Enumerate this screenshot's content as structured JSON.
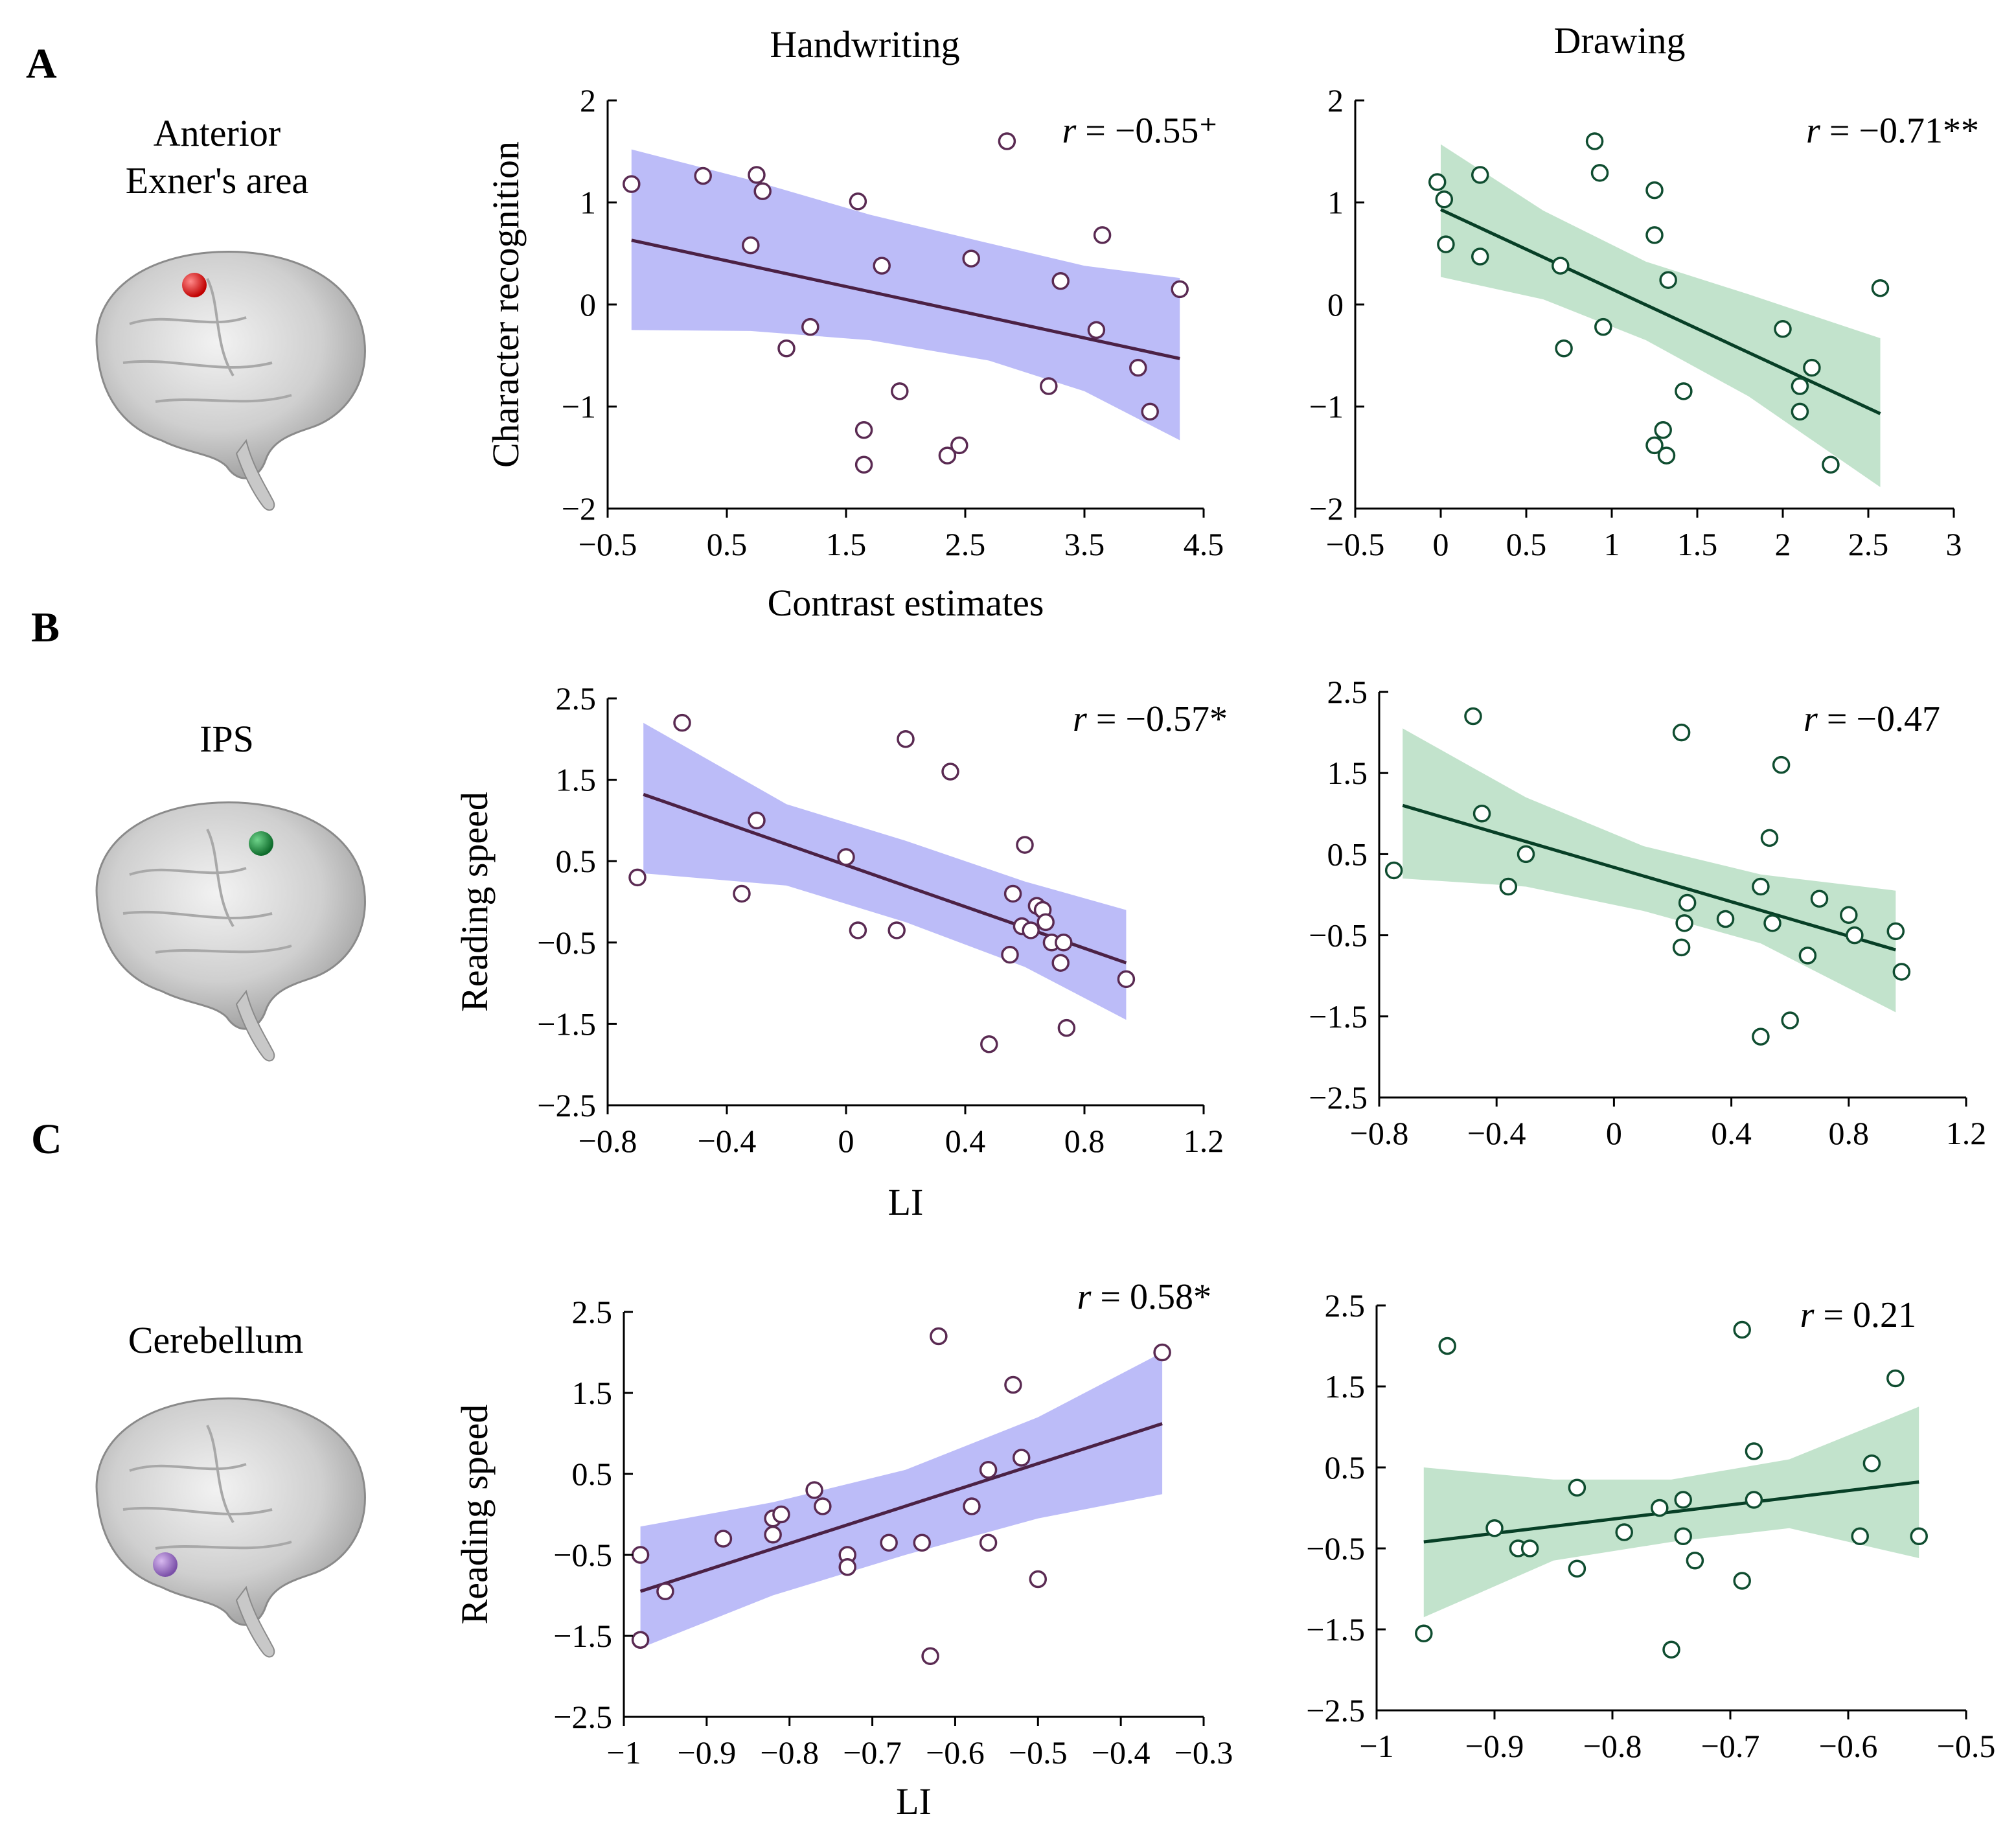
{
  "figure": {
    "columns": [
      "Handwriting",
      "Drawing"
    ],
    "panels": [
      {
        "letter": "A",
        "region": [
          "Anterior",
          "Exner's area"
        ],
        "region_color": "#e02020"
      },
      {
        "letter": "B",
        "region": [
          "IPS"
        ],
        "region_color": "#1f8a3a"
      },
      {
        "letter": "C",
        "region": [
          "Cerebellum"
        ],
        "region_color": "#9a6cc0"
      }
    ]
  },
  "colors": {
    "handwriting_band": "#b8b8f8",
    "handwriting_line": "#4b2145",
    "handwriting_point": "#5a2a52",
    "drawing_band": "#bfe1c9",
    "drawing_line": "#073f26",
    "drawing_point": "#0f4d30"
  },
  "chart_data": [
    {
      "id": "A-handwriting",
      "type": "scatter",
      "series_name": "Handwriting",
      "xlabel": "Contrast estimates",
      "ylabel": "Character recognition",
      "xlim": [
        -0.5,
        4.5
      ],
      "ylim": [
        -2,
        2
      ],
      "xticks": [
        -0.5,
        0.5,
        1.5,
        2.5,
        3.5,
        4.5
      ],
      "xtick_labels": [
        "−0.5",
        "0.5",
        "1.5",
        "2.5",
        "3.5",
        "4.5"
      ],
      "yticks": [
        -2,
        -1,
        0,
        1,
        2
      ],
      "ytick_labels": [
        "−2",
        "−1",
        "0",
        "1",
        "2"
      ],
      "annotation": "r = −0.55⁺",
      "fit_line": {
        "x": [
          -0.3,
          4.3
        ],
        "y": [
          0.63,
          -0.53
        ]
      },
      "ci_band": {
        "x": [
          -0.3,
          0.7,
          1.7,
          2.7,
          3.5,
          4.3
        ],
        "upper": [
          1.52,
          1.22,
          0.88,
          0.6,
          0.38,
          0.26
        ],
        "lower": [
          -0.25,
          -0.26,
          -0.35,
          -0.55,
          -0.85,
          -1.33
        ]
      },
      "points": [
        {
          "x": -0.3,
          "y": 1.18
        },
        {
          "x": 0.3,
          "y": 1.26
        },
        {
          "x": 0.7,
          "y": 0.58
        },
        {
          "x": 0.75,
          "y": 1.27
        },
        {
          "x": 0.8,
          "y": 1.11
        },
        {
          "x": 1.0,
          "y": -0.43
        },
        {
          "x": 1.2,
          "y": -0.22
        },
        {
          "x": 1.6,
          "y": 1.01
        },
        {
          "x": 1.65,
          "y": -1.23
        },
        {
          "x": 1.65,
          "y": -1.57
        },
        {
          "x": 1.8,
          "y": 0.38
        },
        {
          "x": 1.95,
          "y": -0.85
        },
        {
          "x": 2.35,
          "y": -1.48
        },
        {
          "x": 2.45,
          "y": -1.38
        },
        {
          "x": 2.55,
          "y": 0.45
        },
        {
          "x": 2.85,
          "y": 1.6
        },
        {
          "x": 3.2,
          "y": -0.8
        },
        {
          "x": 3.3,
          "y": 0.23
        },
        {
          "x": 3.6,
          "y": -0.25
        },
        {
          "x": 3.65,
          "y": 0.68
        },
        {
          "x": 3.95,
          "y": -0.62
        },
        {
          "x": 4.05,
          "y": -1.05
        },
        {
          "x": 4.3,
          "y": 0.15
        }
      ]
    },
    {
      "id": "A-drawing",
      "type": "scatter",
      "series_name": "Drawing",
      "xlabel": "",
      "ylabel": "",
      "xlim": [
        -0.5,
        3
      ],
      "ylim": [
        -2,
        2
      ],
      "xticks": [
        -0.5,
        0,
        0.5,
        1,
        1.5,
        2,
        2.5,
        3
      ],
      "xtick_labels": [
        "−0.5",
        "0",
        "0.5",
        "1",
        "1.5",
        "2",
        "2.5",
        "3"
      ],
      "yticks": [
        -2,
        -1,
        0,
        1,
        2
      ],
      "ytick_labels": [
        "−2",
        "−1",
        "0",
        "1",
        "2"
      ],
      "annotation": "r = −0.71**",
      "fit_line": {
        "x": [
          0,
          2.57
        ],
        "y": [
          0.93,
          -1.07
        ]
      },
      "ci_band": {
        "x": [
          0,
          0.6,
          1.2,
          1.8,
          2.57
        ],
        "upper": [
          1.57,
          0.92,
          0.42,
          0.1,
          -0.33
        ],
        "lower": [
          0.27,
          0.05,
          -0.35,
          -0.9,
          -1.79
        ]
      },
      "points": [
        {
          "x": -0.02,
          "y": 1.2
        },
        {
          "x": 0.02,
          "y": 1.03
        },
        {
          "x": 0.03,
          "y": 0.59
        },
        {
          "x": 0.23,
          "y": 1.27
        },
        {
          "x": 0.23,
          "y": 0.47
        },
        {
          "x": 0.7,
          "y": 0.38
        },
        {
          "x": 0.72,
          "y": -0.43
        },
        {
          "x": 0.9,
          "y": 1.6
        },
        {
          "x": 0.93,
          "y": 1.29
        },
        {
          "x": 0.95,
          "y": -0.22
        },
        {
          "x": 1.25,
          "y": 1.12
        },
        {
          "x": 1.25,
          "y": 0.68
        },
        {
          "x": 1.25,
          "y": -1.38
        },
        {
          "x": 1.3,
          "y": -1.23
        },
        {
          "x": 1.32,
          "y": -1.48
        },
        {
          "x": 1.33,
          "y": 0.24
        },
        {
          "x": 1.42,
          "y": -0.85
        },
        {
          "x": 2.0,
          "y": -0.24
        },
        {
          "x": 2.1,
          "y": -0.8
        },
        {
          "x": 2.1,
          "y": -1.05
        },
        {
          "x": 2.17,
          "y": -0.62
        },
        {
          "x": 2.28,
          "y": -1.57
        },
        {
          "x": 2.57,
          "y": 0.16
        }
      ]
    },
    {
      "id": "B-handwriting",
      "type": "scatter",
      "series_name": "Handwriting",
      "xlabel": "LI",
      "ylabel": "Reading speed",
      "xlim": [
        -0.8,
        1.2
      ],
      "ylim": [
        -2.5,
        2.5
      ],
      "xticks": [
        -0.8,
        -0.4,
        0,
        0.4,
        0.8,
        1.2
      ],
      "xtick_labels": [
        "−0.8",
        "−0.4",
        "0",
        "0.4",
        "0.8",
        "1.2"
      ],
      "yticks": [
        -2.5,
        -1.5,
        -0.5,
        0.5,
        1.5,
        2.5
      ],
      "ytick_labels": [
        "−2.5",
        "−1.5",
        "−0.5",
        "0.5",
        "1.5",
        "2.5"
      ],
      "annotation": "r = −0.57*",
      "fit_line": {
        "x": [
          -0.68,
          0.94
        ],
        "y": [
          1.32,
          -0.75
        ]
      },
      "ci_band": {
        "x": [
          -0.68,
          -0.2,
          0.2,
          0.6,
          0.94
        ],
        "upper": [
          2.2,
          1.2,
          0.75,
          0.25,
          -0.1
        ],
        "lower": [
          0.35,
          0.2,
          -0.25,
          -0.8,
          -1.45
        ]
      },
      "points": [
        {
          "x": -0.7,
          "y": 0.3
        },
        {
          "x": -0.55,
          "y": 2.2
        },
        {
          "x": -0.35,
          "y": 0.1
        },
        {
          "x": -0.3,
          "y": 1.0
        },
        {
          "x": 0.0,
          "y": 0.55
        },
        {
          "x": 0.04,
          "y": -0.35
        },
        {
          "x": 0.17,
          "y": -0.35
        },
        {
          "x": 0.2,
          "y": 2.0
        },
        {
          "x": 0.35,
          "y": 1.6
        },
        {
          "x": 0.48,
          "y": -1.75
        },
        {
          "x": 0.55,
          "y": -0.65
        },
        {
          "x": 0.56,
          "y": 0.1
        },
        {
          "x": 0.59,
          "y": -0.3
        },
        {
          "x": 0.6,
          "y": 0.7
        },
        {
          "x": 0.62,
          "y": -0.35
        },
        {
          "x": 0.64,
          "y": -0.05
        },
        {
          "x": 0.66,
          "y": -0.1
        },
        {
          "x": 0.67,
          "y": -0.25
        },
        {
          "x": 0.69,
          "y": -0.5
        },
        {
          "x": 0.72,
          "y": -0.75
        },
        {
          "x": 0.73,
          "y": -0.5
        },
        {
          "x": 0.74,
          "y": -1.55
        },
        {
          "x": 0.94,
          "y": -0.95
        }
      ]
    },
    {
      "id": "B-drawing",
      "type": "scatter",
      "series_name": "Drawing",
      "xlabel": "",
      "ylabel": "",
      "xlim": [
        -0.8,
        1.2
      ],
      "ylim": [
        -2.5,
        2.5
      ],
      "xticks": [
        -0.8,
        -0.4,
        0,
        0.4,
        0.8,
        1.2
      ],
      "xtick_labels": [
        "−0.8",
        "−0.4",
        "0",
        "0.4",
        "0.8",
        "1.2"
      ],
      "yticks": [
        -2.5,
        -1.5,
        -0.5,
        0.5,
        1.5,
        2.5
      ],
      "ytick_labels": [
        "−2.5",
        "−1.5",
        "−0.5",
        "0.5",
        "1.5",
        "2.5"
      ],
      "annotation": "r = −0.47",
      "fit_line": {
        "x": [
          -0.72,
          0.96
        ],
        "y": [
          1.1,
          -0.68
        ]
      },
      "ci_band": {
        "x": [
          -0.72,
          -0.3,
          0.1,
          0.5,
          0.96
        ],
        "upper": [
          2.05,
          1.2,
          0.6,
          0.25,
          0.05
        ],
        "lower": [
          0.2,
          0.1,
          -0.2,
          -0.6,
          -1.45
        ]
      },
      "points": [
        {
          "x": -0.75,
          "y": 0.3
        },
        {
          "x": -0.48,
          "y": 2.2
        },
        {
          "x": -0.45,
          "y": 1.0
        },
        {
          "x": -0.36,
          "y": 0.1
        },
        {
          "x": -0.3,
          "y": 0.5
        },
        {
          "x": 0.23,
          "y": 2.0
        },
        {
          "x": 0.23,
          "y": -0.65
        },
        {
          "x": 0.24,
          "y": -0.35
        },
        {
          "x": 0.25,
          "y": -0.1
        },
        {
          "x": 0.38,
          "y": -0.3
        },
        {
          "x": 0.5,
          "y": 0.1
        },
        {
          "x": 0.5,
          "y": -1.75
        },
        {
          "x": 0.53,
          "y": 0.7
        },
        {
          "x": 0.54,
          "y": -0.35
        },
        {
          "x": 0.57,
          "y": 1.6
        },
        {
          "x": 0.6,
          "y": -1.55
        },
        {
          "x": 0.66,
          "y": -0.75
        },
        {
          "x": 0.7,
          "y": -0.05
        },
        {
          "x": 0.8,
          "y": -0.25
        },
        {
          "x": 0.82,
          "y": -0.5
        },
        {
          "x": 0.96,
          "y": -0.45
        },
        {
          "x": 0.98,
          "y": -0.95
        }
      ]
    },
    {
      "id": "C-handwriting",
      "type": "scatter",
      "series_name": "Handwriting",
      "xlabel": "LI",
      "ylabel": "Reading speed",
      "xlim": [
        -1,
        -0.3
      ],
      "ylim": [
        -2.5,
        2.5
      ],
      "xticks": [
        -1,
        -0.9,
        -0.8,
        -0.7,
        -0.6,
        -0.5,
        -0.4,
        -0.3
      ],
      "xtick_labels": [
        "−1",
        "−0.9",
        "−0.8",
        "−0.7",
        "−0.6",
        "−0.5",
        "−0.4",
        "−0.3"
      ],
      "yticks": [
        -2.5,
        -1.5,
        -0.5,
        0.5,
        1.5,
        2.5
      ],
      "ytick_labels": [
        "−2.5",
        "−1.5",
        "−0.5",
        "0.5",
        "1.5",
        "2.5"
      ],
      "annotation": "r = 0.58*",
      "fit_line": {
        "x": [
          -0.98,
          -0.35
        ],
        "y": [
          -0.95,
          1.12
        ]
      },
      "ci_band": {
        "x": [
          -0.98,
          -0.82,
          -0.66,
          -0.5,
          -0.35
        ],
        "upper": [
          -0.15,
          0.15,
          0.55,
          1.2,
          2.0
        ],
        "lower": [
          -1.65,
          -1.0,
          -0.5,
          -0.05,
          0.25
        ]
      },
      "points": [
        {
          "x": -0.98,
          "y": -0.5
        },
        {
          "x": -0.98,
          "y": -1.55
        },
        {
          "x": -0.95,
          "y": -0.95
        },
        {
          "x": -0.88,
          "y": -0.3
        },
        {
          "x": -0.82,
          "y": -0.05
        },
        {
          "x": -0.82,
          "y": -0.25
        },
        {
          "x": -0.81,
          "y": 0.0
        },
        {
          "x": -0.77,
          "y": 0.3
        },
        {
          "x": -0.76,
          "y": 0.1
        },
        {
          "x": -0.73,
          "y": -0.5
        },
        {
          "x": -0.73,
          "y": -0.65
        },
        {
          "x": -0.68,
          "y": -0.35
        },
        {
          "x": -0.64,
          "y": -0.35
        },
        {
          "x": -0.63,
          "y": -1.75
        },
        {
          "x": -0.62,
          "y": 2.2
        },
        {
          "x": -0.58,
          "y": 0.1
        },
        {
          "x": -0.56,
          "y": 0.55
        },
        {
          "x": -0.56,
          "y": -0.35
        },
        {
          "x": -0.53,
          "y": 1.6
        },
        {
          "x": -0.52,
          "y": 0.7
        },
        {
          "x": -0.5,
          "y": -0.8
        },
        {
          "x": -0.35,
          "y": 2.0
        }
      ]
    },
    {
      "id": "C-drawing",
      "type": "scatter",
      "series_name": "Drawing",
      "xlabel": "",
      "ylabel": "",
      "xlim": [
        -1,
        -0.5
      ],
      "ylim": [
        -2.5,
        2.5
      ],
      "xticks": [
        -1,
        -0.9,
        -0.8,
        -0.7,
        -0.6,
        -0.5
      ],
      "xtick_labels": [
        "−1",
        "−0.9",
        "−0.8",
        "−0.7",
        "−0.6",
        "−0.5"
      ],
      "yticks": [
        -2.5,
        -1.5,
        -0.5,
        0.5,
        1.5,
        2.5
      ],
      "ytick_labels": [
        "−2.5",
        "−1.5",
        "−0.5",
        "0.5",
        "1.5",
        "2.5"
      ],
      "annotation": "r = 0.21",
      "fit_line": {
        "x": [
          -0.96,
          -0.54
        ],
        "y": [
          -0.42,
          0.32
        ]
      },
      "ci_band": {
        "x": [
          -0.96,
          -0.85,
          -0.75,
          -0.65,
          -0.54
        ],
        "upper": [
          0.5,
          0.35,
          0.35,
          0.6,
          1.25
        ],
        "lower": [
          -1.35,
          -0.65,
          -0.42,
          -0.25,
          -0.62
        ]
      },
      "points": [
        {
          "x": -0.96,
          "y": -1.55
        },
        {
          "x": -0.94,
          "y": 2.0
        },
        {
          "x": -0.9,
          "y": -0.25
        },
        {
          "x": -0.88,
          "y": -0.5
        },
        {
          "x": -0.87,
          "y": -0.5
        },
        {
          "x": -0.83,
          "y": 0.25
        },
        {
          "x": -0.83,
          "y": -0.75
        },
        {
          "x": -0.79,
          "y": -0.3
        },
        {
          "x": -0.76,
          "y": 0.0
        },
        {
          "x": -0.75,
          "y": -1.75
        },
        {
          "x": -0.74,
          "y": 0.1
        },
        {
          "x": -0.74,
          "y": -0.35
        },
        {
          "x": -0.73,
          "y": -0.65
        },
        {
          "x": -0.69,
          "y": 2.2
        },
        {
          "x": -0.69,
          "y": -0.9
        },
        {
          "x": -0.68,
          "y": 0.7
        },
        {
          "x": -0.68,
          "y": 0.1
        },
        {
          "x": -0.59,
          "y": -0.35
        },
        {
          "x": -0.58,
          "y": 0.55
        },
        {
          "x": -0.56,
          "y": 1.6
        },
        {
          "x": -0.54,
          "y": -0.35
        }
      ]
    }
  ]
}
